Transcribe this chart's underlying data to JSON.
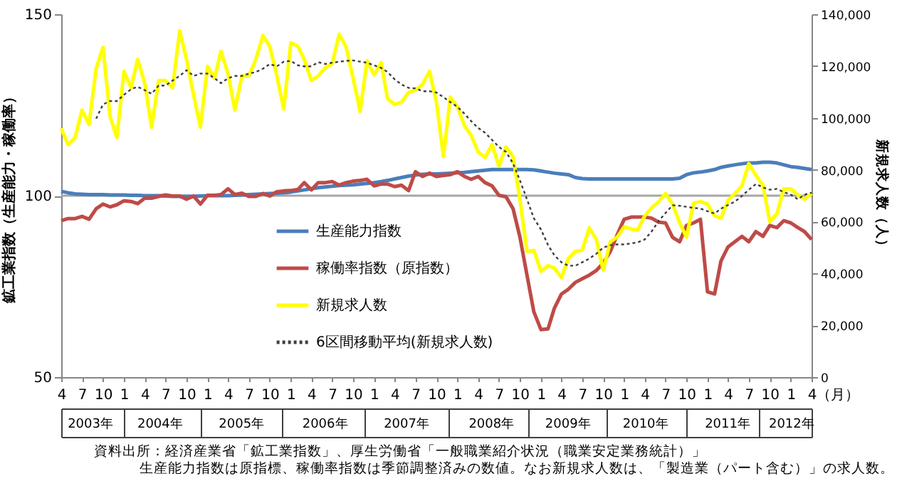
{
  "chart_data": {
    "type": "line",
    "ylabel": "鉱工業指数（生産能力・稼働率）",
    "y2label": "新規求人数（人）",
    "xlabel": "（月）",
    "x": [
      "2003-04",
      "2003-05",
      "2003-06",
      "2003-07",
      "2003-08",
      "2003-09",
      "2003-10",
      "2003-11",
      "2003-12",
      "2004-01",
      "2004-02",
      "2004-03",
      "2004-04",
      "2004-05",
      "2004-06",
      "2004-07",
      "2004-08",
      "2004-09",
      "2004-10",
      "2004-11",
      "2004-12",
      "2005-01",
      "2005-02",
      "2005-03",
      "2005-04",
      "2005-05",
      "2005-06",
      "2005-07",
      "2005-08",
      "2005-09",
      "2005-10",
      "2005-11",
      "2005-12",
      "2006-01",
      "2006-02",
      "2006-03",
      "2006-04",
      "2006-05",
      "2006-06",
      "2006-07",
      "2006-08",
      "2006-09",
      "2006-10",
      "2006-11",
      "2006-12",
      "2007-01",
      "2007-02",
      "2007-03",
      "2007-04",
      "2007-05",
      "2007-06",
      "2007-07",
      "2007-08",
      "2007-09",
      "2007-10",
      "2007-11",
      "2007-12",
      "2008-01",
      "2008-02",
      "2008-03",
      "2008-04",
      "2008-05",
      "2008-06",
      "2008-07",
      "2008-08",
      "2008-09",
      "2008-10",
      "2008-11",
      "2008-12",
      "2009-01",
      "2009-02",
      "2009-03",
      "2009-04",
      "2009-05",
      "2009-06",
      "2009-07",
      "2009-08",
      "2009-09",
      "2009-10",
      "2009-11",
      "2009-12",
      "2010-01",
      "2010-02",
      "2010-03",
      "2010-04",
      "2010-05",
      "2010-06",
      "2010-07",
      "2010-08",
      "2010-09",
      "2010-10",
      "2010-11",
      "2010-12",
      "2011-01",
      "2011-02",
      "2011-03",
      "2011-04",
      "2011-05",
      "2011-06",
      "2011-07",
      "2011-08",
      "2011-09",
      "2011-10",
      "2011-11",
      "2011-12",
      "2012-01",
      "2012-02",
      "2012-03",
      "2012-04"
    ],
    "series": [
      {
        "name": "生産能力指数",
        "color": "#4a7ebb",
        "values": [
          101.2,
          100.8,
          100.5,
          100.4,
          100.3,
          100.3,
          100.3,
          100.2,
          100.2,
          100.2,
          100.1,
          100.1,
          100,
          100,
          100,
          99.9,
          99.8,
          99.8,
          99.8,
          99.8,
          99.9,
          100,
          100,
          100,
          100,
          100.1,
          100.2,
          100.3,
          100.4,
          100.5,
          100.6,
          100.7,
          100.8,
          101,
          101.3,
          101.6,
          101.9,
          102.2,
          102.4,
          102.6,
          102.8,
          102.9,
          103,
          103.2,
          103.4,
          103.6,
          103.9,
          104.2,
          104.6,
          105,
          105.4,
          105.7,
          105.9,
          106,
          106,
          106.1,
          106.2,
          106.3,
          106.4,
          106.6,
          106.8,
          107,
          107.2,
          107.2,
          107.2,
          107.2,
          107.2,
          107.2,
          107.1,
          106.8,
          106.5,
          106.2,
          106,
          105.8,
          105,
          104.7,
          104.6,
          104.6,
          104.6,
          104.6,
          104.6,
          104.6,
          104.6,
          104.6,
          104.6,
          104.6,
          104.6,
          104.6,
          104.6,
          104.8,
          105.8,
          106.3,
          106.5,
          106.8,
          107.2,
          107.8,
          108.2,
          108.5,
          108.8,
          109,
          109,
          109.2,
          109.2,
          109,
          108.5,
          108,
          107.8,
          107.5,
          107.2
        ]
      },
      {
        "name": "稼働率指数（原指数）",
        "color": "#be4b48",
        "values": [
          93.1,
          93.7,
          93.7,
          94.3,
          93.5,
          96.4,
          97.7,
          96.9,
          97.5,
          98.6,
          98.4,
          97.8,
          99.3,
          99.3,
          99.8,
          100.2,
          99.9,
          99.9,
          99,
          99.9,
          97.7,
          100.1,
          100.1,
          100.3,
          101.9,
          100.3,
          100.7,
          99.8,
          99.8,
          100.6,
          99.9,
          101.1,
          101.3,
          101.4,
          101.7,
          103.6,
          101.6,
          103.6,
          103.6,
          103.9,
          102.9,
          103.6,
          104,
          104.2,
          104.5,
          102.7,
          103.2,
          103.2,
          102.5,
          102.9,
          101.4,
          106.6,
          105.3,
          106.2,
          105.3,
          105.6,
          105.8,
          106.6,
          105.3,
          104.5,
          105.3,
          103.6,
          102.7,
          100.1,
          99.7,
          96.4,
          88.6,
          78.1,
          68,
          63.1,
          63.3,
          69,
          72.9,
          74.2,
          76.1,
          77.1,
          78.1,
          79.4,
          81.4,
          84.6,
          89.2,
          93.5,
          94.1,
          94.1,
          94.1,
          93.8,
          92.7,
          92.5,
          88.5,
          87.3,
          91.8,
          92.5,
          93.5,
          73.5,
          72.9,
          82,
          85.9,
          87.3,
          88.8,
          87.3,
          90.1,
          88.8,
          91.8,
          91.2,
          93.1,
          92.5,
          91.2,
          90.1,
          87.9
        ]
      },
      {
        "name": "新規求人数",
        "color": "#ffff00",
        "axis": "y2",
        "values": [
          96000,
          89700,
          92400,
          103000,
          97500,
          119000,
          127200,
          100600,
          92400,
          118000,
          111600,
          122600,
          113400,
          96400,
          114400,
          114400,
          111600,
          133600,
          122600,
          108900,
          96400,
          119900,
          115300,
          125700,
          117100,
          103000,
          116200,
          116200,
          122600,
          131800,
          127600,
          116200,
          103400,
          129000,
          127600,
          122600,
          114400,
          116200,
          119300,
          120800,
          132300,
          127200,
          115300,
          102500,
          122000,
          116600,
          121300,
          107400,
          105200,
          106100,
          109800,
          110700,
          112900,
          118000,
          106100,
          85100,
          108000,
          104300,
          97000,
          93300,
          86900,
          84700,
          89700,
          81400,
          88800,
          85100,
          68600,
          48500,
          48900,
          40800,
          43000,
          42100,
          38400,
          45700,
          48500,
          48900,
          57600,
          53100,
          41200,
          52200,
          54000,
          58000,
          57100,
          56700,
          62200,
          65300,
          67700,
          70800,
          66800,
          59500,
          54000,
          67100,
          67700,
          66800,
          62200,
          61300,
          68200,
          70800,
          73700,
          82400,
          77800,
          74100,
          60000,
          63000,
          72600,
          72600,
          70400,
          68600,
          70800
        ]
      },
      {
        "name": "6区間移動平均(新規求人数)",
        "color": "#404040",
        "axis": "y2",
        "line_style": "dotted",
        "values": [
          null,
          null,
          null,
          null,
          null,
          99700,
          105200,
          106500,
          106500,
          108900,
          111100,
          112000,
          110700,
          109300,
          112500,
          112500,
          114400,
          116200,
          118400,
          116200,
          117100,
          117100,
          115300,
          113400,
          115300,
          116200,
          116200,
          117100,
          117700,
          119000,
          120800,
          119900,
          121700,
          122000,
          120300,
          119900,
          119900,
          121500,
          120800,
          121300,
          121700,
          122000,
          122200,
          121700,
          121300,
          120300,
          119300,
          117700,
          114900,
          112900,
          111600,
          111400,
          110300,
          110300,
          109800,
          108000,
          106100,
          104300,
          101600,
          98800,
          96100,
          94300,
          91500,
          88800,
          86900,
          82400,
          75900,
          68600,
          61300,
          57000,
          51000,
          47000,
          44300,
          43000,
          43000,
          44300,
          45700,
          47600,
          50000,
          50900,
          51200,
          51200,
          51600,
          52000,
          53100,
          56200,
          60200,
          63300,
          66300,
          66100,
          65700,
          65300,
          65000,
          64000,
          63100,
          65000,
          66400,
          67700,
          69900,
          72300,
          74500,
          73200,
          72300,
          72600,
          71400,
          70400,
          68600,
          70400,
          71200
        ]
      }
    ],
    "xlim": [
      "2003-04",
      "2012-04"
    ],
    "xticks": [
      {
        "value": "2003-04",
        "label": "4"
      },
      {
        "value": "2003-07",
        "label": "7"
      },
      {
        "value": "2003-10",
        "label": "10"
      },
      {
        "value": "2004-01",
        "label": "1"
      },
      {
        "value": "2004-04",
        "label": "4"
      },
      {
        "value": "2004-07",
        "label": "7"
      },
      {
        "value": "2004-10",
        "label": "10"
      },
      {
        "value": "2005-01",
        "label": "1"
      },
      {
        "value": "2005-04",
        "label": "4"
      },
      {
        "value": "2005-07",
        "label": "7"
      },
      {
        "value": "2005-10",
        "label": "10"
      },
      {
        "value": "2006-01",
        "label": "1"
      },
      {
        "value": "2006-04",
        "label": "4"
      },
      {
        "value": "2006-07",
        "label": "7"
      },
      {
        "value": "2006-10",
        "label": "10"
      },
      {
        "value": "2007-01",
        "label": "1"
      },
      {
        "value": "2007-04",
        "label": "4"
      },
      {
        "value": "2007-07",
        "label": "7"
      },
      {
        "value": "2007-10",
        "label": "10"
      },
      {
        "value": "2008-01",
        "label": "1"
      },
      {
        "value": "2008-04",
        "label": "4"
      },
      {
        "value": "2008-07",
        "label": "7"
      },
      {
        "value": "2008-10",
        "label": "10"
      },
      {
        "value": "2009-01",
        "label": "1"
      },
      {
        "value": "2009-04",
        "label": "4"
      },
      {
        "value": "2009-07",
        "label": "7"
      },
      {
        "value": "2009-10",
        "label": "10"
      },
      {
        "value": "2010-01",
        "label": "1"
      },
      {
        "value": "2010-04",
        "label": "4"
      },
      {
        "value": "2010-07",
        "label": "7"
      },
      {
        "value": "2010-10",
        "label": "10"
      },
      {
        "value": "2011-01",
        "label": "1"
      },
      {
        "value": "2011-04",
        "label": "4"
      },
      {
        "value": "2011-07",
        "label": "7"
      },
      {
        "value": "2011-10",
        "label": "10"
      },
      {
        "value": "2012-01",
        "label": "1"
      },
      {
        "value": "2012-04",
        "label": "4"
      }
    ],
    "x2lim": [
      "2003-04",
      "2012-04"
    ],
    "x2ticks": [
      {
        "value": "2003-08-04",
        "label": "2003年"
      },
      {
        "value": "2004-06-04",
        "label": "2004年"
      },
      {
        "value": "2005-05-27",
        "label": "2005年"
      },
      {
        "value": "2006-05-28",
        "label": "2006年"
      },
      {
        "value": "2007-05-20",
        "label": "2007年"
      },
      {
        "value": "2008-05-26",
        "label": "2008年"
      },
      {
        "value": "2009-04-26",
        "label": "2009年"
      },
      {
        "value": "2010-04-01",
        "label": "2010年"
      },
      {
        "value": "2011-03-27",
        "label": "2011年"
      },
      {
        "value": "2012-01-01",
        "label": "2012年"
      }
    ],
    "ylim": [
      50,
      150
    ],
    "yticks": [
      50,
      100,
      150
    ],
    "y2lim": [
      0,
      140000
    ],
    "y2ticks": [
      0,
      {
        "value": 20000,
        "label": "20,000"
      },
      {
        "value": 40000,
        "label": "40,000"
      },
      {
        "value": 60000,
        "label": "60,000"
      },
      {
        "value": 80000,
        "label": "80,000"
      },
      {
        "value": 100000,
        "label": "100,000"
      },
      {
        "value": 120000,
        "label": "120,000"
      },
      {
        "value": 140000,
        "label": "140,000"
      }
    ],
    "ref_lines": [
      {
        "axis": "y",
        "value": 100,
        "color": "#a6a6a6"
      }
    ],
    "legend": "bottom left",
    "annotations": [
      "資料出所：経済産業省「鉱工業指数」、厚生労働省「一般職業紹介状況（職業安定業務統計）」",
      "生産能力指数は原指標、稼働率指数は季節調整済みの数値。なお新規求人数は、「製造業（パート含む）」の求人数。"
    ]
  }
}
